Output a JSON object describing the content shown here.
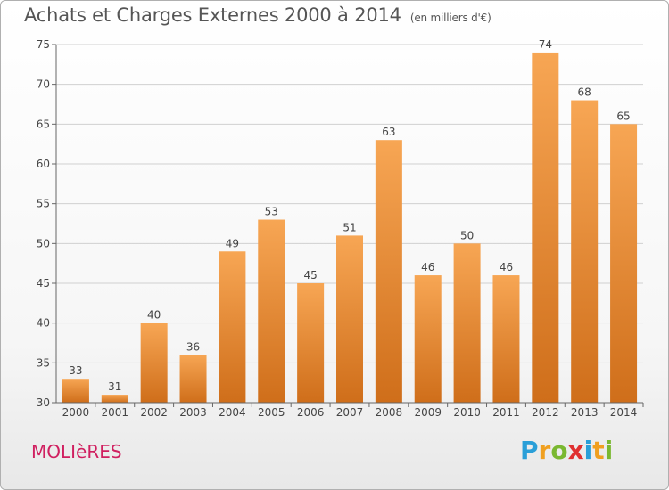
{
  "title": "Achats et Charges Externes 2000 à 2014",
  "unit": "(en milliers d'€)",
  "commune": "MOLIèRES",
  "logo": {
    "letters": [
      "P",
      "r",
      "o",
      "x",
      "i",
      "t",
      "i"
    ],
    "colors": [
      "#2a9fd8",
      "#f0a020",
      "#7ab830",
      "#e03030",
      "#2a9fd8",
      "#f0a020",
      "#7ab830"
    ]
  },
  "chart_data": {
    "type": "bar",
    "title": "Achats et Charges Externes 2000 à 2014",
    "xlabel": "",
    "ylabel": "",
    "categories": [
      "2000",
      "2001",
      "2002",
      "2003",
      "2004",
      "2005",
      "2006",
      "2007",
      "2008",
      "2009",
      "2010",
      "2011",
      "2012",
      "2013",
      "2014"
    ],
    "values": [
      33,
      31,
      40,
      36,
      49,
      53,
      45,
      51,
      63,
      46,
      50,
      46,
      74,
      68,
      65
    ],
    "ylim": [
      30,
      75
    ],
    "yticks": [
      30,
      35,
      40,
      45,
      50,
      55,
      60,
      65,
      70,
      75
    ],
    "grid": true,
    "bar_color_top": "#f7a654",
    "bar_color_bottom": "#cf6e1a"
  }
}
